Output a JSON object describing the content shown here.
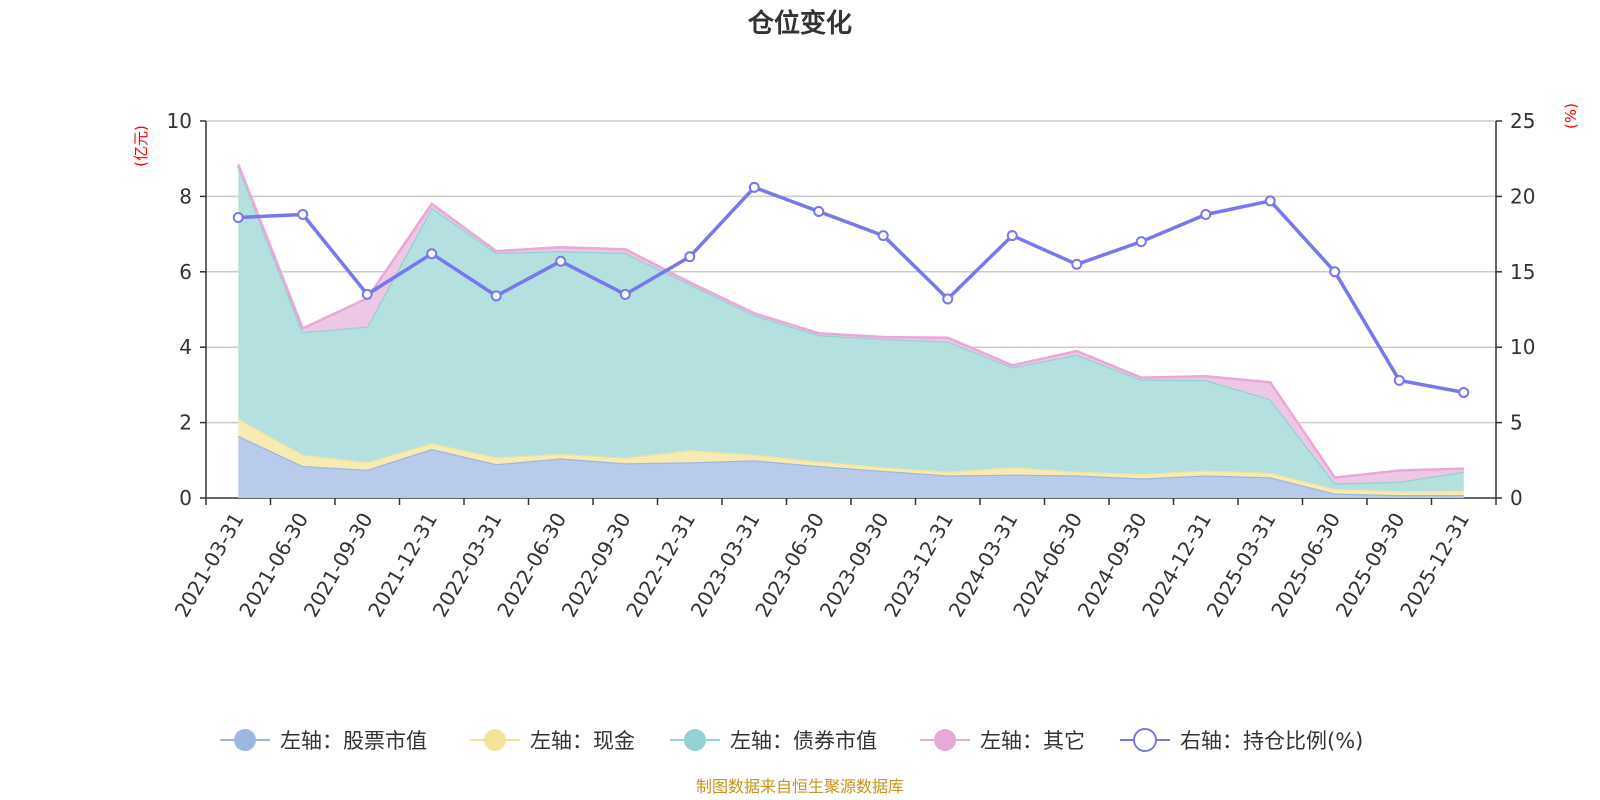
{
  "chart_data": {
    "type": "area",
    "title": "仓位变化",
    "categories": [
      "2021-03-31",
      "2021-06-30",
      "2021-09-30",
      "2021-12-31",
      "2022-03-31",
      "2022-06-30",
      "2022-09-30",
      "2022-12-31",
      "2023-03-31",
      "2023-06-30",
      "2023-09-30",
      "2023-12-31",
      "2024-03-31",
      "2024-06-30",
      "2024-09-30",
      "2024-12-31",
      "2025-03-31",
      "2025-06-30",
      "2025-09-30",
      "2025-12-31"
    ],
    "left_axis": {
      "unit": "(亿元)",
      "ticks": [
        "0",
        "2",
        "4",
        "6",
        "8",
        "10"
      ],
      "ylim": [
        0,
        10
      ]
    },
    "right_axis": {
      "unit": "(%)",
      "ticks": [
        "0",
        "5",
        "10",
        "15",
        "20",
        "25"
      ],
      "ylim": [
        0,
        25
      ]
    },
    "series": [
      {
        "name": "左轴：股票市值",
        "axis": "left",
        "color": "#9db7e0",
        "fill": "#b9cbea",
        "values": [
          1.65,
          0.85,
          0.75,
          1.3,
          0.9,
          1.05,
          0.92,
          0.95,
          1.0,
          0.85,
          0.72,
          0.6,
          0.62,
          0.6,
          0.52,
          0.6,
          0.55,
          0.12,
          0.08,
          0.08
        ]
      },
      {
        "name": "左轴：现金",
        "axis": "left",
        "color": "#f5e29a",
        "fill": "#f7ebb5",
        "values": [
          0.45,
          0.3,
          0.2,
          0.15,
          0.18,
          0.12,
          0.15,
          0.32,
          0.15,
          0.12,
          0.1,
          0.1,
          0.2,
          0.1,
          0.12,
          0.13,
          0.12,
          0.12,
          0.1,
          0.12
        ]
      },
      {
        "name": "左轴：债券市值",
        "axis": "left",
        "color": "#93d2d2",
        "fill": "#b4e0e0",
        "values": [
          6.7,
          3.25,
          3.6,
          6.25,
          5.42,
          5.38,
          5.43,
          4.4,
          3.7,
          3.35,
          3.4,
          3.45,
          2.65,
          3.1,
          2.5,
          2.4,
          1.95,
          0.15,
          0.25,
          0.5
        ]
      },
      {
        "name": "左轴：其它",
        "axis": "left",
        "color": "#e8a8d8",
        "fill": "#ecc8e4",
        "values": [
          0.05,
          0.1,
          0.75,
          0.1,
          0.05,
          0.1,
          0.1,
          0.05,
          0.05,
          0.05,
          0.05,
          0.1,
          0.05,
          0.1,
          0.05,
          0.1,
          0.45,
          0.15,
          0.3,
          0.08
        ]
      },
      {
        "name": "右轴：持仓比例(%)",
        "axis": "right",
        "color": "#7777ee",
        "type": "line",
        "values": [
          18.6,
          18.8,
          13.5,
          16.2,
          13.4,
          15.7,
          13.5,
          16.0,
          20.6,
          19.0,
          17.4,
          13.2,
          17.4,
          15.5,
          17.0,
          18.8,
          19.7,
          15.0,
          7.8,
          7.0
        ]
      }
    ],
    "legend_position": "bottom",
    "grid": true
  },
  "source_note": "制图数据来自恒生聚源数据库"
}
